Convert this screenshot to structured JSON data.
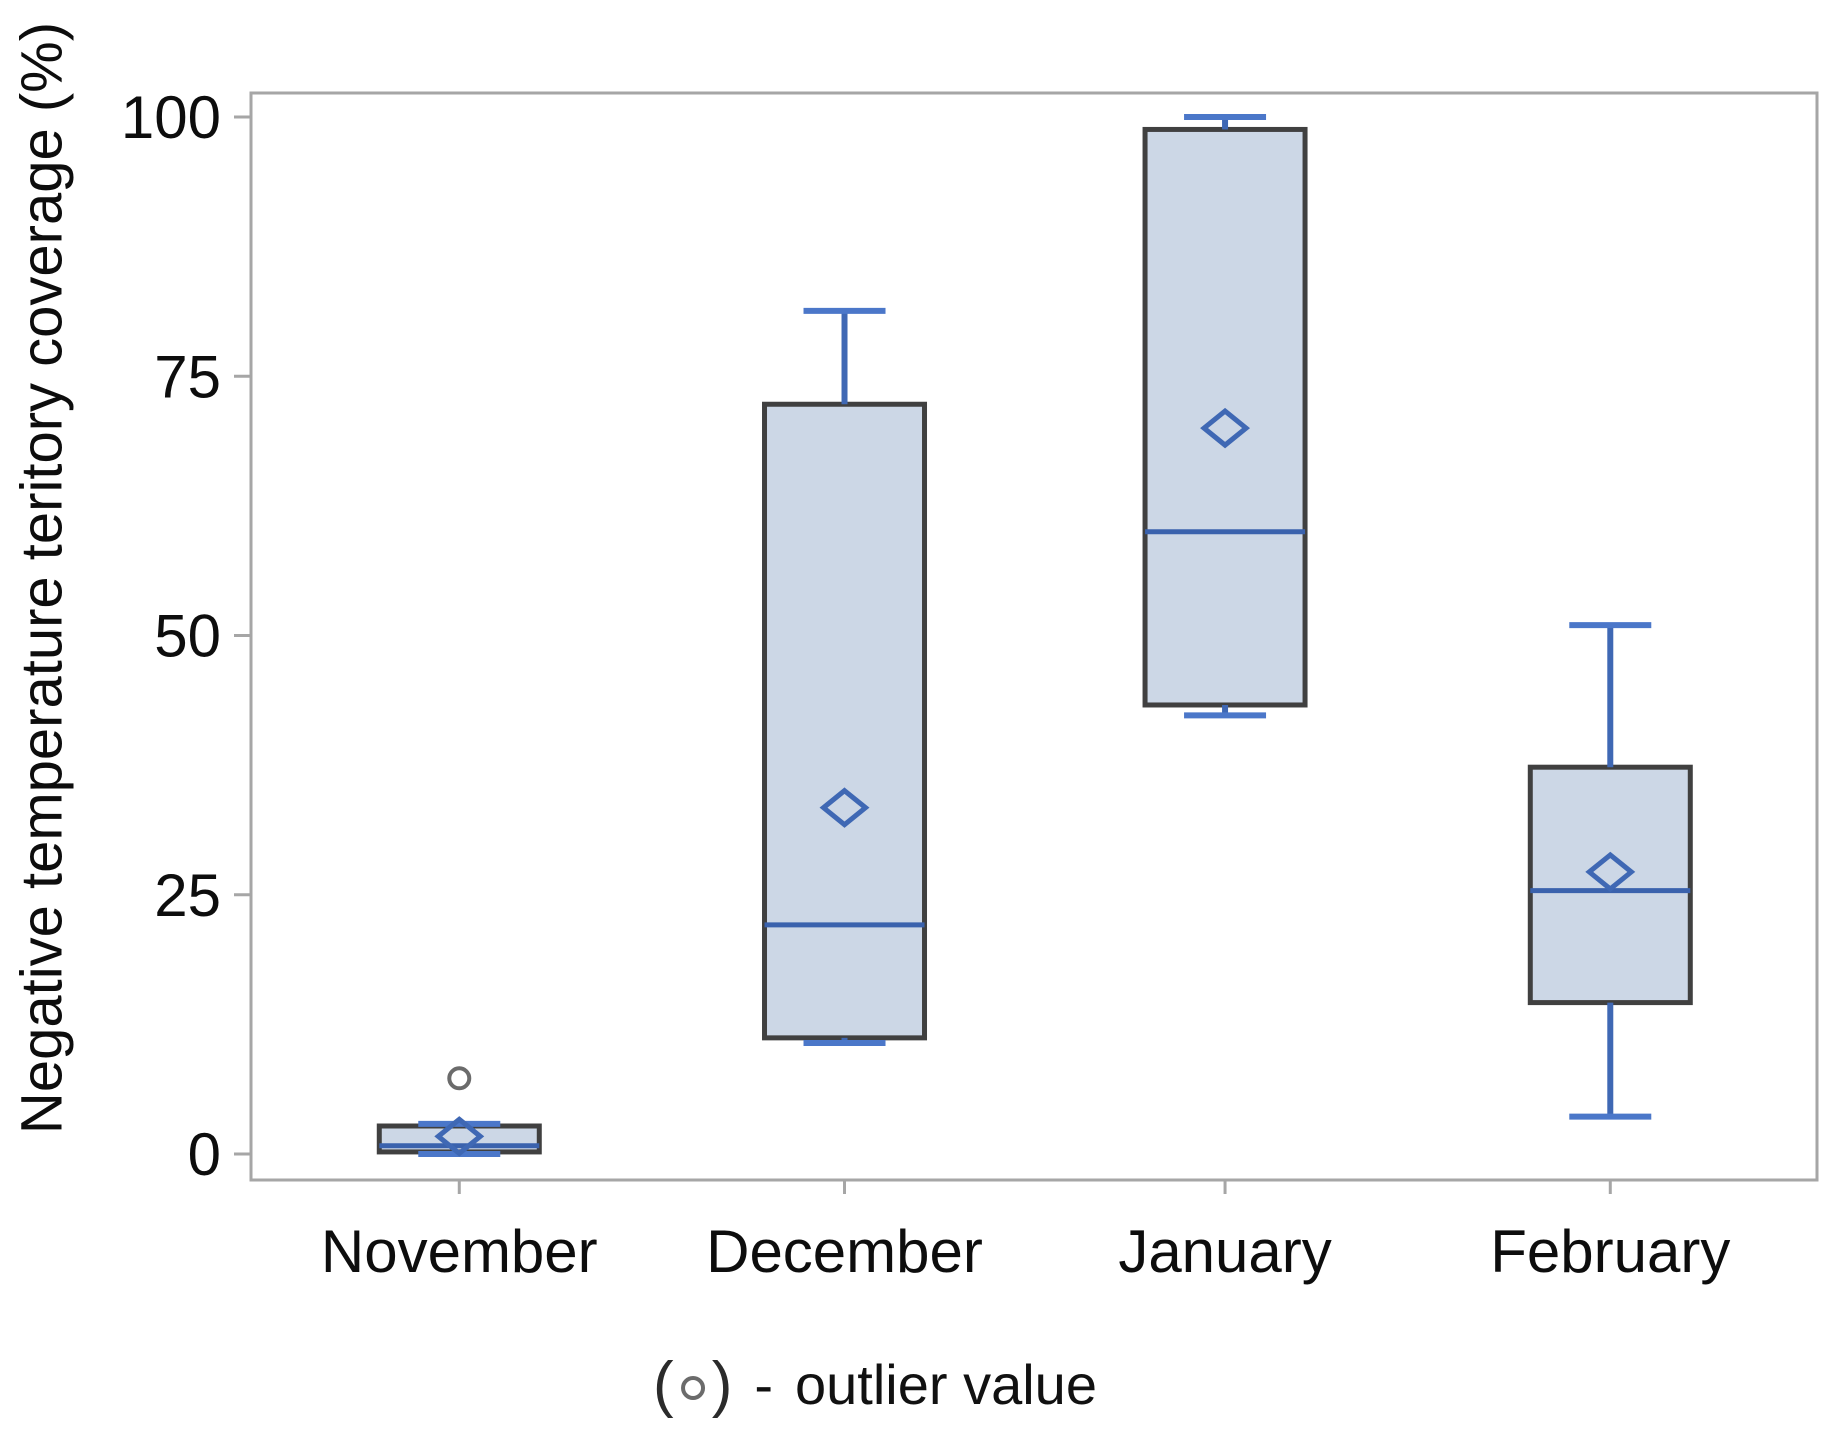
{
  "chart_data": {
    "type": "boxplot",
    "title": "",
    "xlabel": "",
    "ylabel": "Negative temperature teritory coverage (%)",
    "ylim": [
      0,
      100
    ],
    "yticks": [
      "0",
      "25",
      "50",
      "75",
      "100"
    ],
    "ytick_values": [
      0,
      25,
      50,
      75,
      100
    ],
    "grid": false,
    "legend_position": "bottom-center",
    "categories": [
      "November",
      "December",
      "January",
      "February"
    ],
    "series": [
      {
        "name": "November",
        "whisker_low": 0,
        "q1": 0.2,
        "median": 0.8,
        "mean": 1.7,
        "q3": 2.7,
        "whisker_high": 2.9,
        "outliers": [
          7.3
        ]
      },
      {
        "name": "December",
        "whisker_low": 10.7,
        "q1": 11.2,
        "median": 22.1,
        "mean": 33.4,
        "q3": 72.3,
        "whisker_high": 81.3,
        "outliers": []
      },
      {
        "name": "January",
        "whisker_low": 42.3,
        "q1": 43.3,
        "median": 60.0,
        "mean": 70.0,
        "q3": 98.8,
        "whisker_high": 100.0,
        "outliers": []
      },
      {
        "name": "February",
        "whisker_low": 3.6,
        "q1": 14.6,
        "median": 25.4,
        "mean": 27.2,
        "q3": 37.3,
        "whisker_high": 51.0,
        "outliers": []
      }
    ],
    "marker_meanings": {
      "diamond": "mean value",
      "circle": "outlier value",
      "line": "median"
    },
    "colors": {
      "box_fill": "#ccd7e6",
      "box_border": "#404040",
      "whisker": "#3f68b4",
      "cap": "#4b77c9",
      "median": "#3a62ad",
      "mean_diamond": "#3f68b4",
      "outlier_stroke": "#6b6b6b",
      "frame": "#a6a6a6",
      "text": "#0d0d0d"
    }
  },
  "legend": {
    "open_paren": "(",
    "close_paren": ")",
    "dash": "-",
    "label": "outlier value"
  }
}
